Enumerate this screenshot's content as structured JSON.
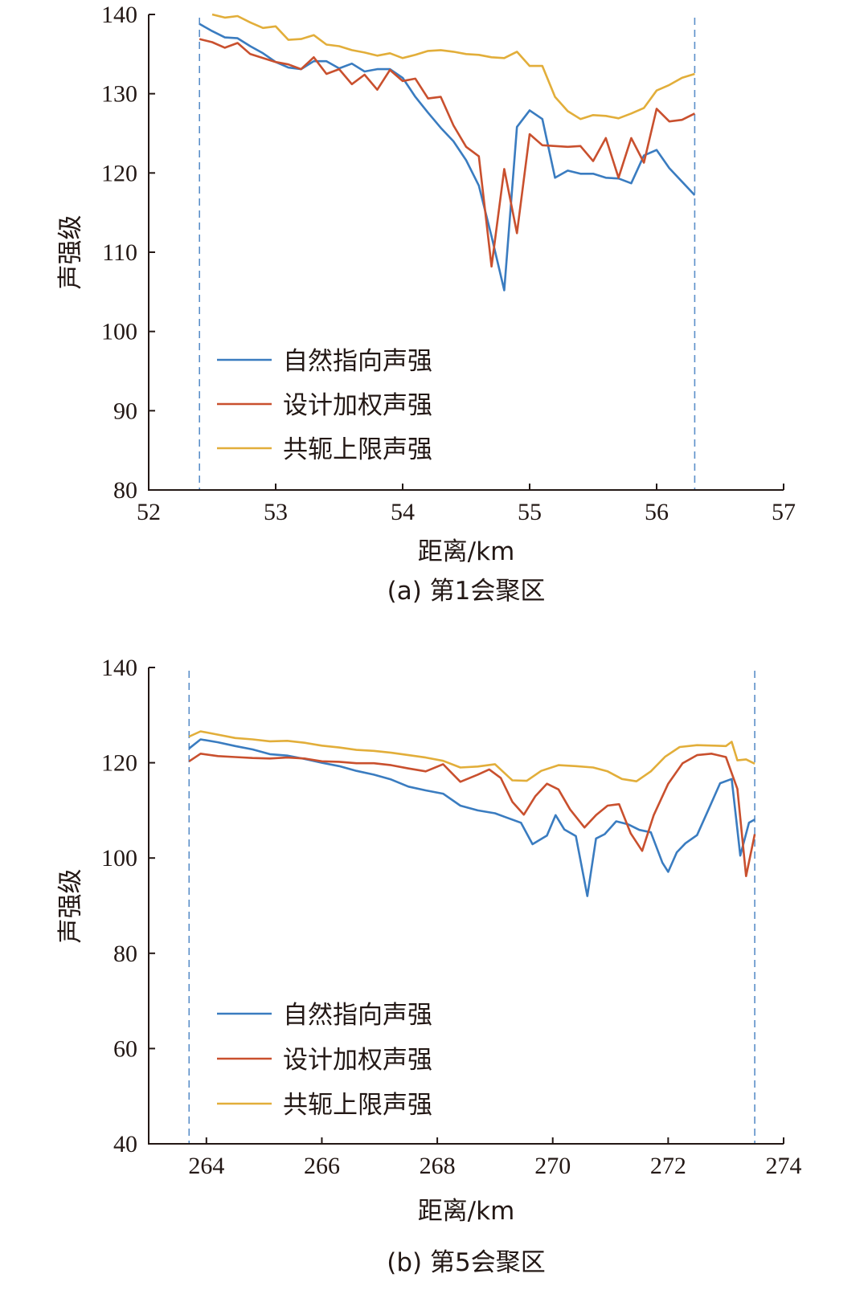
{
  "colors": {
    "blue": "#3a7cc0",
    "red": "#c9502e",
    "yellow": "#e2ae3a",
    "dash": "#5b8fc9"
  },
  "chart_data": [
    {
      "type": "line",
      "caption": "(a) 第1会聚区",
      "xlabel": "距离/km",
      "ylabel": "声强级",
      "xlim": [
        52,
        57
      ],
      "ylim": [
        80,
        140
      ],
      "xticks": [
        52,
        53,
        54,
        55,
        56,
        57
      ],
      "yticks": [
        80,
        90,
        100,
        110,
        120,
        130,
        140
      ],
      "vlines": [
        52.4,
        56.3
      ],
      "legend_position": "lower-left",
      "series": [
        {
          "name": "自然指向声强",
          "color": "blue",
          "x": [
            52.4,
            52.5,
            52.6,
            52.7,
            52.8,
            52.9,
            53.0,
            53.1,
            53.2,
            53.3,
            53.4,
            53.5,
            53.6,
            53.7,
            53.8,
            53.9,
            54.0,
            54.1,
            54.2,
            54.3,
            54.4,
            54.5,
            54.6,
            54.7,
            54.8,
            54.9,
            55.0,
            55.1,
            55.2,
            55.3,
            55.4,
            55.5,
            55.6,
            55.7,
            55.8,
            55.9,
            56.0,
            56.1,
            56.2,
            56.3
          ],
          "y": [
            138.8,
            137.9,
            137.1,
            137.0,
            136.0,
            135.1,
            134.0,
            133.3,
            133.1,
            134.1,
            134.1,
            133.2,
            133.8,
            132.8,
            133.1,
            133.1,
            132.0,
            129.6,
            127.6,
            125.7,
            124.0,
            121.6,
            118.4,
            112.0,
            105.2,
            125.8,
            127.9,
            126.8,
            119.4,
            120.3,
            119.9,
            119.9,
            119.4,
            119.3,
            118.7,
            122.2,
            122.9,
            120.6,
            118.9,
            117.2
          ]
        },
        {
          "name": "设计加权声强",
          "color": "red",
          "x": [
            52.4,
            52.5,
            52.6,
            52.7,
            52.8,
            52.9,
            53.0,
            53.1,
            53.2,
            53.3,
            53.4,
            53.5,
            53.6,
            53.7,
            53.8,
            53.9,
            54.0,
            54.1,
            54.2,
            54.3,
            54.4,
            54.5,
            54.6,
            54.7,
            54.8,
            54.9,
            55.0,
            55.1,
            55.2,
            55.3,
            55.4,
            55.5,
            55.6,
            55.7,
            55.8,
            55.9,
            56.0,
            56.1,
            56.2,
            56.3
          ],
          "y": [
            136.9,
            136.5,
            135.8,
            136.4,
            135.0,
            134.5,
            134.0,
            133.7,
            133.1,
            134.6,
            132.5,
            133.1,
            131.2,
            132.4,
            130.5,
            133.0,
            131.6,
            131.9,
            129.4,
            129.6,
            126.0,
            123.3,
            122.1,
            108.2,
            120.5,
            112.4,
            124.9,
            123.5,
            123.4,
            123.3,
            123.4,
            121.5,
            124.4,
            119.4,
            124.4,
            121.3,
            128.1,
            126.5,
            126.7,
            127.5
          ]
        },
        {
          "name": "共轭上限声强",
          "color": "yellow",
          "x": [
            52.5,
            52.6,
            52.7,
            52.8,
            52.9,
            53.0,
            53.1,
            53.2,
            53.3,
            53.4,
            53.5,
            53.6,
            53.7,
            53.8,
            53.9,
            54.0,
            54.1,
            54.2,
            54.3,
            54.4,
            54.5,
            54.6,
            54.7,
            54.8,
            54.9,
            55.0,
            55.1,
            55.2,
            55.3,
            55.4,
            55.5,
            55.6,
            55.7,
            55.8,
            55.9,
            56.0,
            56.1,
            56.2,
            56.3
          ],
          "y": [
            140.0,
            139.6,
            139.8,
            139.0,
            138.3,
            138.5,
            136.8,
            136.9,
            137.4,
            136.2,
            136.0,
            135.5,
            135.2,
            134.8,
            135.1,
            134.5,
            134.9,
            135.4,
            135.5,
            135.3,
            135.0,
            134.9,
            134.6,
            134.5,
            135.3,
            133.5,
            133.5,
            129.6,
            127.8,
            126.8,
            127.3,
            127.2,
            126.9,
            127.5,
            128.2,
            130.4,
            131.1,
            132.0,
            132.5
          ]
        }
      ]
    },
    {
      "type": "line",
      "caption": "(b) 第5会聚区",
      "xlabel": "距离/km",
      "ylabel": "声强级",
      "xlim": [
        263,
        274
      ],
      "ylim": [
        40,
        140
      ],
      "xticks": [
        264,
        266,
        268,
        270,
        272,
        274
      ],
      "yticks": [
        40,
        60,
        80,
        100,
        120,
        140
      ],
      "vlines": [
        263.7,
        273.5
      ],
      "legend_position": "lower-left",
      "series": [
        {
          "name": "自然指向声强",
          "color": "blue",
          "x": [
            263.7,
            263.9,
            264.2,
            264.5,
            264.8,
            265.1,
            265.4,
            265.7,
            266.0,
            266.3,
            266.6,
            266.9,
            267.2,
            267.5,
            267.8,
            268.1,
            268.4,
            268.7,
            269.0,
            269.2,
            269.45,
            269.65,
            269.9,
            270.05,
            270.2,
            270.4,
            270.6,
            270.75,
            270.9,
            271.1,
            271.3,
            271.5,
            271.7,
            271.9,
            272.0,
            272.15,
            272.3,
            272.5,
            272.7,
            272.9,
            273.1,
            273.25,
            273.4,
            273.5
          ],
          "y": [
            123,
            124.9,
            124.3,
            123.5,
            122.8,
            121.8,
            121.5,
            120.8,
            120.0,
            119.3,
            118.3,
            117.5,
            116.5,
            115.0,
            114.2,
            113.5,
            111.0,
            110.0,
            109.4,
            108.5,
            107.4,
            102.9,
            104.7,
            109.0,
            106.0,
            104.6,
            92.0,
            104.1,
            105.0,
            107.7,
            107.1,
            105.9,
            105.4,
            99.0,
            97.1,
            101.2,
            103.1,
            104.8,
            110.2,
            115.7,
            116.6,
            100.5,
            107.4,
            108.1
          ]
        },
        {
          "name": "设计加权声强",
          "color": "red",
          "x": [
            263.7,
            263.9,
            264.2,
            264.5,
            264.8,
            265.1,
            265.4,
            265.7,
            266.0,
            266.3,
            266.6,
            266.9,
            267.2,
            267.5,
            267.8,
            268.1,
            268.4,
            268.7,
            268.9,
            269.1,
            269.3,
            269.5,
            269.7,
            269.9,
            270.1,
            270.3,
            270.55,
            270.75,
            270.95,
            271.15,
            271.35,
            271.55,
            271.75,
            272.0,
            272.25,
            272.5,
            272.75,
            273.0,
            273.2,
            273.35,
            273.5
          ],
          "y": [
            120.3,
            121.9,
            121.4,
            121.2,
            121.0,
            120.9,
            121.1,
            120.9,
            120.3,
            120.2,
            119.9,
            119.9,
            119.5,
            118.8,
            118.2,
            119.7,
            116.0,
            117.5,
            118.6,
            116.8,
            111.8,
            109.1,
            113.0,
            115.6,
            114.4,
            110.2,
            106.4,
            109.0,
            111.0,
            111.3,
            105.2,
            101.5,
            109.0,
            115.6,
            119.9,
            121.6,
            121.9,
            121.2,
            114.5,
            96.2,
            105.0
          ]
        },
        {
          "name": "共轭上限声强",
          "color": "yellow",
          "x": [
            263.7,
            263.9,
            264.2,
            264.5,
            264.8,
            265.1,
            265.4,
            265.7,
            266.0,
            266.3,
            266.6,
            266.9,
            267.2,
            267.5,
            267.8,
            268.1,
            268.4,
            268.7,
            269.0,
            269.3,
            269.55,
            269.8,
            270.1,
            270.4,
            270.7,
            270.95,
            271.2,
            271.45,
            271.7,
            271.95,
            272.2,
            272.5,
            272.8,
            273.0,
            273.1,
            273.2,
            273.35,
            273.5
          ],
          "y": [
            125.5,
            126.6,
            125.9,
            125.2,
            124.9,
            124.5,
            124.6,
            124.2,
            123.6,
            123.2,
            122.7,
            122.5,
            122.1,
            121.6,
            121.1,
            120.4,
            119.0,
            119.2,
            119.7,
            116.3,
            116.2,
            118.3,
            119.5,
            119.3,
            119.0,
            118.2,
            116.6,
            116.1,
            118.2,
            121.3,
            123.3,
            123.7,
            123.6,
            123.5,
            124.4,
            120.5,
            120.7,
            119.8
          ]
        }
      ]
    }
  ]
}
